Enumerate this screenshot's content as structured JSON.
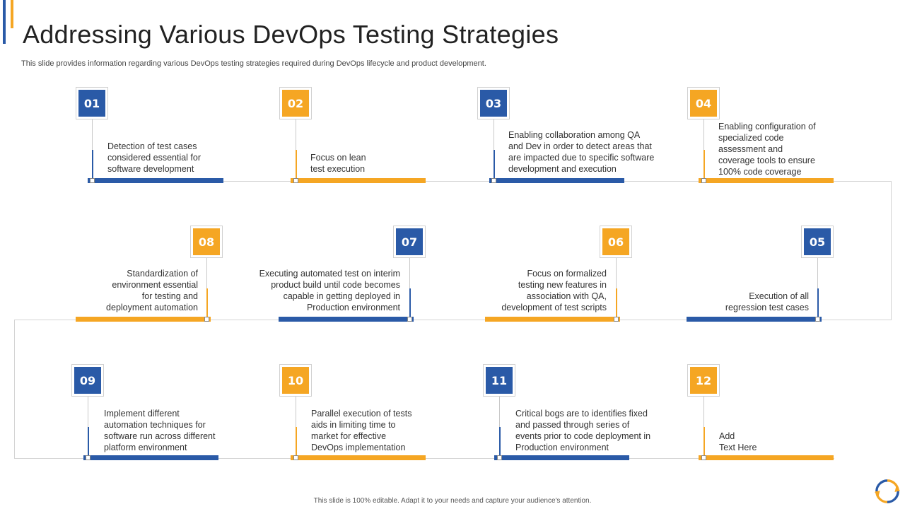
{
  "title": "Addressing Various DevOps Testing Strategies",
  "subtitle": "This slide provides information regarding various DevOps testing strategies required during DevOps lifecycle and product development.",
  "footer": "This slide is 100% editable.  Adapt it to your needs and capture your audience's attention.",
  "colors": {
    "blue": "#2a5aa7",
    "orange": "#f5a623",
    "line": "#d4d4d4"
  },
  "logo_icon": "circular-arrows-icon",
  "steps": [
    {
      "num": "01",
      "text": "Detection of test cases\nconsidered essential for\nsoftware development"
    },
    {
      "num": "02",
      "text": "Focus on lean\ntest execution"
    },
    {
      "num": "03",
      "text": "Enabling collaboration among QA\nand Dev in order to detect areas that\nare impacted due to specific software\ndevelopment  and execution"
    },
    {
      "num": "04",
      "text": "Enabling configuration  of\nspecialized code\nassessment and\ncoverage  tools to ensure\n100% code coverage"
    },
    {
      "num": "05",
      "text": "Execution of all\nregression test cases"
    },
    {
      "num": "06",
      "text": "Focus on formalized\ntesting new features in\nassociation with QA,\ndevelopment  of test scripts"
    },
    {
      "num": "07",
      "text": "Executing automated test on interim\nproduct build until code becomes\ncapable in getting deployed in\nProduction environment"
    },
    {
      "num": "08",
      "text": "Standardization  of\nenvironment  essential\nfor testing and\ndeployment automation"
    },
    {
      "num": "09",
      "text": "Implement  different\nautomation techniques for\nsoftware run across different\nplatform environment"
    },
    {
      "num": "10",
      "text": "Parallel execution of tests\naids in limiting time to\nmarket for effective\nDevOps  implementation"
    },
    {
      "num": "11",
      "text": "Critical bogs are to identifies fixed\nand passed through series of\nevents prior to code deployment in\nProduction environment"
    },
    {
      "num": "12",
      "text": "Add\nText Here"
    }
  ]
}
